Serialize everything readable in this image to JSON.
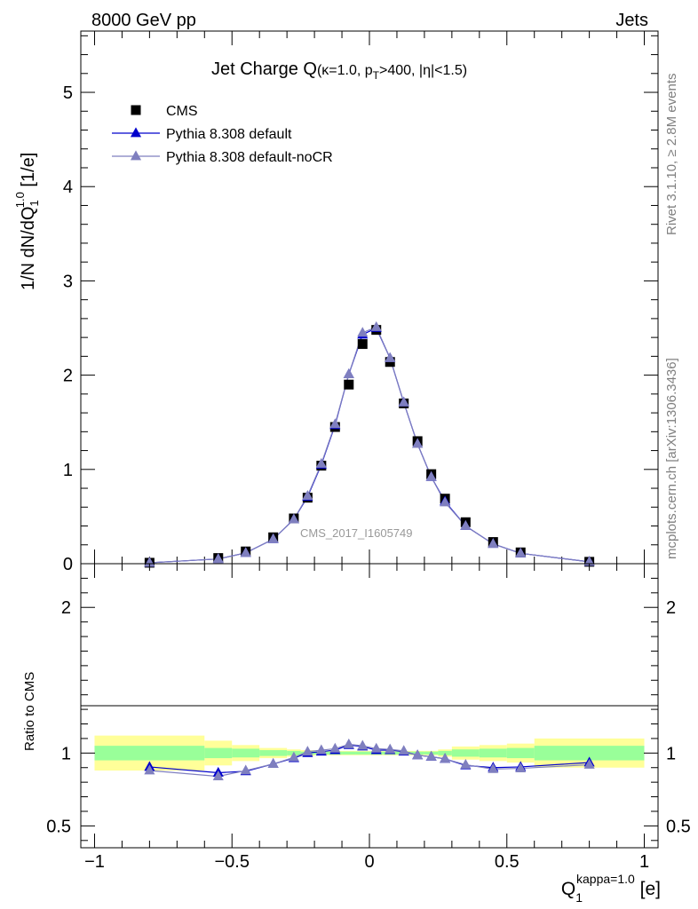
{
  "header": {
    "left": "8000 GeV pp",
    "right": "Jets"
  },
  "side_labels": {
    "rivet": "Rivet 3.1.10, ≥ 2.8M events",
    "mcplots": "mcplots.cern.ch [arXiv:1306.3436]"
  },
  "chart_data": {
    "type": "scatter",
    "title_main": "Jet Charge Q",
    "title_cut_kappa": "(κ=1.0, p",
    "title_cut_sub": "T",
    "title_cut_rest": ">400, |η|<1.5)",
    "analysis_label": "CMS_2017_I1605749",
    "ylabel_main": "1/N dN/dQ",
    "ylabel_sub": "1",
    "ylabel_sup": "1.0",
    "ylabel_units": " [1/e]",
    "ylabel_ratio": "Ratio to CMS",
    "xlabel_main": "Q",
    "xlabel_sub": "1",
    "xlabel_sup": "kappa=1.0",
    "xlabel_units": " [e]",
    "xlim": [
      -1.05,
      1.05
    ],
    "ylim_main": [
      0,
      5.65
    ],
    "ylim_ratio": [
      0.35,
      2.3
    ],
    "x_ticks": [
      -1,
      -0.5,
      0,
      0.5,
      1
    ],
    "x_tick_labels": [
      "−1",
      "−0.5",
      "0",
      "0.5",
      "1"
    ],
    "y_ticks_main": [
      0,
      1,
      2,
      3,
      4,
      5
    ],
    "y_tick_labels_main": [
      "0",
      "1",
      "2",
      "3",
      "4",
      "5"
    ],
    "y_ticks_ratio": [
      0.5,
      1,
      2
    ],
    "y_tick_labels_ratio": [
      "0.5",
      "1",
      "2"
    ],
    "legend_position": "top-left",
    "colors": {
      "data": "#000000",
      "default": "#0000cc",
      "nocr": "#7f7fbf",
      "band_inner": "#99ff99",
      "band_outer": "#ffff99",
      "analysis_label": "#999999",
      "side_label": "#808080"
    },
    "series": [
      {
        "name": "CMS",
        "marker": "square",
        "x": [
          -0.8,
          -0.55,
          -0.45,
          -0.35,
          -0.275,
          -0.225,
          -0.175,
          -0.125,
          -0.075,
          -0.025,
          0.025,
          0.075,
          0.125,
          0.175,
          0.225,
          0.275,
          0.35,
          0.45,
          0.55,
          0.8
        ],
        "y": [
          0.01,
          0.06,
          0.13,
          0.28,
          0.48,
          0.7,
          1.04,
          1.45,
          1.9,
          2.33,
          2.48,
          2.14,
          1.7,
          1.3,
          0.95,
          0.69,
          0.44,
          0.23,
          0.12,
          0.02
        ]
      },
      {
        "name": "Pythia 8.308 default",
        "marker": "triangle",
        "x": [
          -0.8,
          -0.55,
          -0.45,
          -0.35,
          -0.275,
          -0.225,
          -0.175,
          -0.125,
          -0.075,
          -0.025,
          0.025,
          0.075,
          0.125,
          0.175,
          0.225,
          0.275,
          0.35,
          0.45,
          0.55,
          0.8
        ],
        "y": [
          0.01,
          0.05,
          0.115,
          0.26,
          0.47,
          0.71,
          1.05,
          1.47,
          2.01,
          2.43,
          2.5,
          2.18,
          1.71,
          1.27,
          0.92,
          0.66,
          0.4,
          0.21,
          0.11,
          0.02
        ],
        "ratio": [
          0.905,
          0.865,
          0.875,
          0.925,
          0.965,
          1.0,
          1.01,
          1.02,
          1.055,
          1.045,
          1.02,
          1.02,
          1.01,
          0.985,
          0.975,
          0.96,
          0.915,
          0.9,
          0.905,
          0.935
        ]
      },
      {
        "name": "Pythia 8.308 default-noCR",
        "marker": "triangle",
        "x": [
          -0.8,
          -0.55,
          -0.45,
          -0.35,
          -0.275,
          -0.225,
          -0.175,
          -0.125,
          -0.075,
          -0.025,
          0.025,
          0.075,
          0.125,
          0.175,
          0.225,
          0.275,
          0.35,
          0.45,
          0.55,
          0.8
        ],
        "y": [
          0.01,
          0.05,
          0.115,
          0.26,
          0.47,
          0.72,
          1.06,
          1.48,
          2.01,
          2.45,
          2.51,
          2.18,
          1.71,
          1.27,
          0.92,
          0.65,
          0.4,
          0.21,
          0.11,
          0.02
        ],
        "ratio": [
          0.88,
          0.84,
          0.88,
          0.925,
          0.97,
          1.01,
          1.02,
          1.03,
          1.06,
          1.05,
          1.03,
          1.025,
          1.015,
          0.985,
          0.975,
          0.96,
          0.92,
          0.89,
          0.895,
          0.92
        ]
      }
    ],
    "uncertainty_bands": {
      "bin_edges": [
        -1,
        -0.6,
        -0.5,
        -0.4,
        -0.3,
        -0.25,
        -0.2,
        -0.15,
        -0.1,
        -0.05,
        0,
        0.05,
        0.1,
        0.15,
        0.2,
        0.25,
        0.3,
        0.4,
        0.5,
        0.6,
        1
      ],
      "inner_lo": [
        0.95,
        0.965,
        0.97,
        0.98,
        0.985,
        0.99,
        0.99,
        0.99,
        0.99,
        0.99,
        0.99,
        0.99,
        0.99,
        0.99,
        0.99,
        0.985,
        0.975,
        0.97,
        0.965,
        0.95
      ],
      "inner_hi": [
        1.05,
        1.035,
        1.03,
        1.02,
        1.015,
        1.01,
        1.01,
        1.01,
        1.01,
        1.01,
        1.01,
        1.01,
        1.01,
        1.01,
        1.01,
        1.015,
        1.025,
        1.03,
        1.035,
        1.05
      ],
      "outer_lo": [
        0.88,
        0.915,
        0.945,
        0.965,
        0.975,
        0.98,
        0.985,
        0.985,
        0.985,
        0.985,
        0.985,
        0.985,
        0.985,
        0.985,
        0.985,
        0.975,
        0.955,
        0.945,
        0.935,
        0.9
      ],
      "outer_hi": [
        1.12,
        1.085,
        1.055,
        1.035,
        1.025,
        1.02,
        1.015,
        1.015,
        1.015,
        1.015,
        1.015,
        1.015,
        1.015,
        1.015,
        1.015,
        1.025,
        1.045,
        1.055,
        1.065,
        1.1
      ]
    }
  }
}
